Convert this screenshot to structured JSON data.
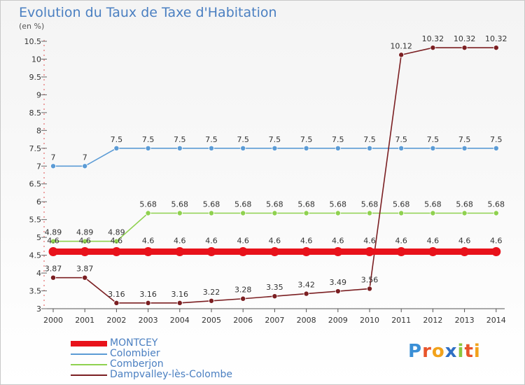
{
  "title": "Evolution du Taux de Taxe d'Habitation",
  "unit_label": "(en %)",
  "brand": {
    "name": "Proxiti",
    "letters": [
      {
        "ch": "P",
        "color": "#3a8fd6"
      },
      {
        "ch": "r",
        "color": "#e8542a"
      },
      {
        "ch": "o",
        "color": "#f2a21b"
      },
      {
        "ch": "x",
        "color": "#2f6fc4"
      },
      {
        "ch": "i",
        "color": "#8cc63f"
      },
      {
        "ch": "t",
        "color": "#e8542a"
      },
      {
        "ch": "i",
        "color": "#f2a21b"
      }
    ]
  },
  "chart_data": {
    "type": "line",
    "title": "Evolution du Taux de Taxe d'Habitation",
    "ylabel": "(en %)",
    "ylim": [
      3,
      10.5
    ],
    "yticks": [
      "3",
      "3.5",
      "4",
      "4.5",
      "5",
      "5.5",
      "6",
      "6.5",
      "7",
      "7.5",
      "8",
      "8.5",
      "9",
      "9.5",
      "10",
      "10.5"
    ],
    "x": [
      "2000",
      "2001",
      "2002",
      "2003",
      "2004",
      "2005",
      "2006",
      "2007",
      "2008",
      "2009",
      "2010",
      "2011",
      "2012",
      "2013",
      "2014"
    ],
    "grid": false,
    "legend_position": "bottom-left",
    "series": [
      {
        "name": "MONTCEY",
        "color": "#e8121b",
        "values": [
          4.6,
          4.6,
          4.6,
          4.6,
          4.6,
          4.6,
          4.6,
          4.6,
          4.6,
          4.6,
          4.6,
          4.6,
          4.6,
          4.6,
          4.6
        ],
        "labels": [
          "4.6",
          "4.6",
          "4.6",
          "4.6",
          "4.6",
          "4.6",
          "4.6",
          "4.6",
          "4.6",
          "4.6",
          "4.6",
          "4.6",
          "4.6",
          "4.6",
          "4.6"
        ]
      },
      {
        "name": "Colombier",
        "color": "#5b9bd5",
        "values": [
          7,
          7,
          7.5,
          7.5,
          7.5,
          7.5,
          7.5,
          7.5,
          7.5,
          7.5,
          7.5,
          7.5,
          7.5,
          7.5,
          7.5
        ],
        "labels": [
          "7",
          "7",
          "7.5",
          "7.5",
          "7.5",
          "7.5",
          "7.5",
          "7.5",
          "7.5",
          "7.5",
          "7.5",
          "7.5",
          "7.5",
          "7.5",
          "7.5"
        ]
      },
      {
        "name": "Comberjon",
        "color": "#8fd14f",
        "values": [
          4.89,
          4.89,
          4.89,
          5.68,
          5.68,
          5.68,
          5.68,
          5.68,
          5.68,
          5.68,
          5.68,
          5.68,
          5.68,
          5.68,
          5.68
        ],
        "labels": [
          "4.89",
          "4.89",
          "4.89",
          "5.68",
          "5.68",
          "5.68",
          "5.68",
          "5.68",
          "5.68",
          "5.68",
          "5.68",
          "5.68",
          "5.68",
          "5.68",
          "5.68"
        ]
      },
      {
        "name": "Dampvalley-lès-Colombe",
        "color": "#7b1f22",
        "values": [
          3.87,
          3.87,
          3.16,
          3.16,
          3.16,
          3.22,
          3.28,
          3.35,
          3.42,
          3.49,
          3.56,
          10.12,
          10.32,
          10.32,
          10.32
        ],
        "labels": [
          "3.87",
          "3.87",
          "3.16",
          "3.16",
          "3.16",
          "3.22",
          "3.28",
          "3.35",
          "3.42",
          "3.49",
          "3.56",
          "10.12",
          "10.32",
          "10.32",
          "10.32"
        ]
      }
    ]
  }
}
